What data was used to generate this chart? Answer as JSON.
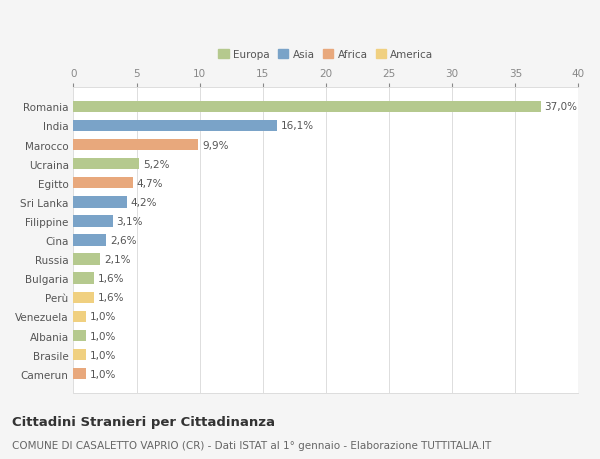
{
  "countries": [
    "Romania",
    "India",
    "Marocco",
    "Ucraina",
    "Egitto",
    "Sri Lanka",
    "Filippine",
    "Cina",
    "Russia",
    "Bulgaria",
    "Perù",
    "Venezuela",
    "Albania",
    "Brasile",
    "Camerun"
  ],
  "values": [
    37.0,
    16.1,
    9.9,
    5.2,
    4.7,
    4.2,
    3.1,
    2.6,
    2.1,
    1.6,
    1.6,
    1.0,
    1.0,
    1.0,
    1.0
  ],
  "labels": [
    "37,0%",
    "16,1%",
    "9,9%",
    "5,2%",
    "4,7%",
    "4,2%",
    "3,1%",
    "2,6%",
    "2,1%",
    "1,6%",
    "1,6%",
    "1,0%",
    "1,0%",
    "1,0%",
    "1,0%"
  ],
  "colors": [
    "#b5c98e",
    "#7aa3c8",
    "#e8a87c",
    "#b5c98e",
    "#e8a87c",
    "#7aa3c8",
    "#7aa3c8",
    "#7aa3c8",
    "#b5c98e",
    "#b5c98e",
    "#f0d080",
    "#f0d080",
    "#b5c98e",
    "#f0d080",
    "#e8a87c"
  ],
  "legend_labels": [
    "Europa",
    "Asia",
    "Africa",
    "America"
  ],
  "legend_colors": [
    "#b5c98e",
    "#7aa3c8",
    "#e8a87c",
    "#f0d080"
  ],
  "xlim": [
    0,
    40
  ],
  "xticks": [
    0,
    5,
    10,
    15,
    20,
    25,
    30,
    35,
    40
  ],
  "title": "Cittadini Stranieri per Cittadinanza",
  "subtitle": "COMUNE DI CASALETTO VAPRIO (CR) - Dati ISTAT al 1° gennaio - Elaborazione TUTTITALIA.IT",
  "bg_color": "#f5f5f5",
  "plot_bg_color": "#ffffff",
  "grid_color": "#dddddd",
  "bar_height": 0.6,
  "label_fontsize": 7.5,
  "tick_fontsize": 7.5,
  "title_fontsize": 9.5,
  "subtitle_fontsize": 7.5
}
